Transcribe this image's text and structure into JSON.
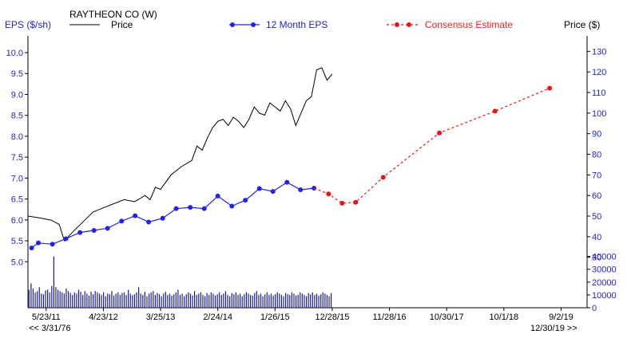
{
  "header": {
    "left_axis_label": "EPS ($/sh)",
    "company": "RAYTHEON CO (W)",
    "price_legend": "Price",
    "eps_legend": "12 Month EPS",
    "estimate_legend": "Consensus Estimate",
    "right_axis_label": "Price ($)"
  },
  "nav": {
    "back": "<< 3/31/76",
    "forward": "12/30/19 >>"
  },
  "colors": {
    "eps": "#2222ee",
    "estimate": "#ee1111",
    "price": "#000000",
    "volume": "#1a1a99",
    "axis_text_blue": "#2222cc"
  },
  "chart_data": {
    "type": "line",
    "title": "RAYTHEON CO (W)",
    "x_tick_labels": [
      "5/23/11",
      "4/23/12",
      "3/25/13",
      "2/24/14",
      "1/26/15",
      "12/28/15",
      "11/28/16",
      "10/30/17",
      "10/1/18",
      "9/2/19"
    ],
    "x_tick_months": [
      0,
      11,
      22,
      33,
      44,
      55,
      66,
      77,
      88,
      99
    ],
    "x_range_months": [
      -3.5,
      104
    ],
    "eps_axis": {
      "label": "EPS ($/sh)",
      "ylim": [
        3.9,
        10.4
      ],
      "ticks": [
        5.0,
        5.5,
        6.0,
        6.5,
        7.0,
        7.5,
        8.0,
        8.5,
        9.0,
        9.5,
        10.0
      ]
    },
    "price_axis": {
      "label": "Price ($)",
      "ylim": [
        5.5,
        137.5
      ],
      "ticks": [
        30,
        40,
        50,
        60,
        70,
        80,
        90,
        100,
        110,
        120,
        130
      ]
    },
    "volume_axis": {
      "ticks": [
        0,
        10000,
        20000,
        30000,
        40000
      ],
      "ylim": [
        0,
        46000
      ]
    },
    "series": [
      {
        "name": "12 Month EPS",
        "x": [
          -2.8,
          -1.5,
          1.2,
          3.8,
          6.5,
          9.2,
          11.8,
          14.5,
          17.1,
          19.7,
          22.4,
          25.0,
          27.7,
          30.4,
          33.0,
          35.7,
          38.3,
          41.0,
          43.6,
          46.3,
          48.9,
          51.5
        ],
        "values": [
          5.33,
          5.45,
          5.42,
          5.55,
          5.7,
          5.75,
          5.8,
          5.97,
          6.1,
          5.95,
          6.04,
          6.27,
          6.3,
          6.27,
          6.57,
          6.33,
          6.47,
          6.75,
          6.68,
          6.9,
          6.72,
          6.76
        ]
      },
      {
        "name": "Consensus Estimate",
        "x": [
          51.5,
          54.3,
          56.9,
          59.5,
          64.8,
          75.6,
          86.3,
          96.8
        ],
        "values": [
          6.76,
          6.62,
          6.4,
          6.42,
          7.02,
          8.08,
          8.6,
          9.15
        ]
      },
      {
        "name": "Price",
        "axis": "price",
        "x": [
          -3.5,
          -1,
          1,
          2.5,
          3.5,
          5,
          7,
          9,
          11,
          13,
          15,
          17,
          19,
          20,
          21,
          22,
          24,
          26,
          28,
          29,
          30,
          31,
          32,
          33,
          34,
          35,
          36,
          37,
          38,
          39,
          40,
          41,
          42,
          43,
          44,
          45,
          46,
          47,
          48,
          49,
          50,
          51,
          52,
          53,
          54,
          55
        ],
        "values": [
          50,
          49,
          48,
          46,
          38,
          42,
          47,
          52,
          54,
          56,
          58,
          57,
          60,
          58,
          64,
          63,
          70,
          74,
          77,
          84,
          82,
          88,
          93,
          96,
          97,
          94,
          98,
          96,
          93,
          97,
          103,
          100,
          99,
          105,
          103,
          101,
          106,
          102,
          94,
          100,
          106,
          108,
          121,
          122,
          116,
          119
        ]
      }
    ],
    "volume": {
      "x_start_month": -3.5,
      "x_end_month": 55,
      "values": [
        14000,
        19000,
        15000,
        12000,
        13000,
        16000,
        11000,
        10500,
        13500,
        14000,
        12000,
        17000,
        40000,
        16000,
        14000,
        13000,
        12000,
        11000,
        15000,
        13000,
        11500,
        10000,
        12000,
        11000,
        14000,
        12500,
        10000,
        13000,
        11000,
        9500,
        12500,
        10500,
        13000,
        12000,
        11000,
        10000,
        12000,
        9000,
        11000,
        10500,
        13000,
        9500,
        11000,
        12000,
        10000,
        11500,
        12000,
        10000,
        14000,
        11000,
        9800,
        10500,
        12000,
        16000,
        11000,
        10000,
        12500,
        9000,
        11000,
        12000,
        13000,
        10000,
        11500,
        10500,
        9000,
        11000,
        12500,
        10000,
        11000,
        9500,
        10500,
        12000,
        14000,
        10000,
        11000,
        9000,
        10500,
        12000,
        11000,
        9500,
        13000,
        10000,
        11000,
        12000,
        10000,
        9000,
        11500,
        10000,
        12000,
        11000,
        9500,
        10500,
        12000,
        10000,
        11000,
        13000,
        10000,
        9000,
        11500,
        10500,
        12000,
        10000,
        11000,
        9000,
        10500,
        12000,
        11000,
        10000,
        9500,
        11500,
        13000,
        10000,
        11000,
        9000,
        10500,
        12000,
        10000,
        11000,
        9500,
        10500,
        12000,
        11000,
        10000,
        9000,
        11500,
        10500,
        10000,
        12000,
        11000,
        9500,
        10000,
        12000,
        11000,
        10000,
        9000,
        11500,
        10500,
        12000,
        10000,
        11000,
        9500,
        10500,
        12000,
        11000,
        10000,
        9000,
        11500
      ]
    }
  }
}
